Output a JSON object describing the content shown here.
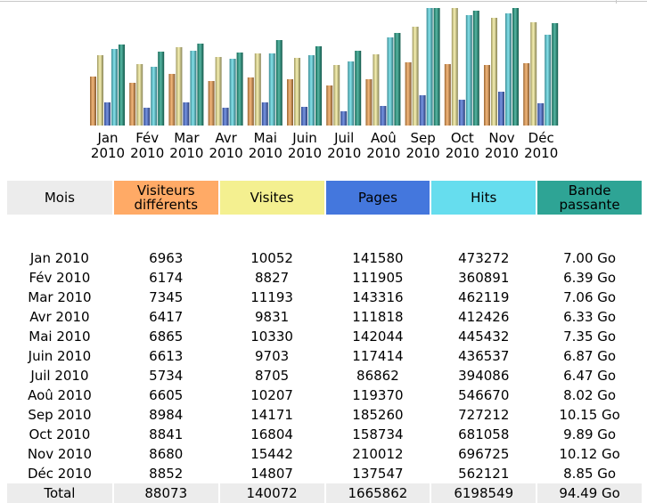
{
  "chart_data": {
    "type": "bar",
    "title": "",
    "categories": [
      "Jan 2010",
      "Fév 2010",
      "Mar 2010",
      "Avr 2010",
      "Mai 2010",
      "Juin 2010",
      "Juil 2010",
      "Aoû 2010",
      "Sep 2010",
      "Oct 2010",
      "Nov 2010",
      "Déc 2010"
    ],
    "category_lines": [
      [
        "Jan",
        "2010"
      ],
      [
        "Fév",
        "2010"
      ],
      [
        "Mar",
        "2010"
      ],
      [
        "Avr",
        "2010"
      ],
      [
        "Mai",
        "2010"
      ],
      [
        "Juin",
        "2010"
      ],
      [
        "Juil",
        "2010"
      ],
      [
        "Aoû",
        "2010"
      ],
      [
        "Sep",
        "2010"
      ],
      [
        "Oct",
        "2010"
      ],
      [
        "Nov",
        "2010"
      ],
      [
        "Déc",
        "2010"
      ]
    ],
    "series": [
      {
        "name": "Visiteurs différents",
        "key": "uniq",
        "color": "#f0a050",
        "values": [
          6963,
          6174,
          7345,
          6417,
          6865,
          6613,
          5734,
          6605,
          8984,
          8841,
          8680,
          8852
        ]
      },
      {
        "name": "Visites",
        "key": "visits",
        "color": "#f4ec98",
        "values": [
          10052,
          8827,
          11193,
          9831,
          10330,
          9703,
          8705,
          10207,
          14171,
          16804,
          15442,
          14807
        ]
      },
      {
        "name": "Pages",
        "key": "pages",
        "color": "#4a70d8",
        "values": [
          141580,
          111905,
          143316,
          111818,
          142044,
          117414,
          86862,
          119370,
          185260,
          158734,
          210012,
          137547
        ]
      },
      {
        "name": "Hits",
        "key": "hits",
        "color": "#5cd8e4",
        "values": [
          473272,
          360891,
          462119,
          412426,
          445432,
          436537,
          394086,
          546670,
          727212,
          681058,
          696725,
          562121
        ]
      },
      {
        "name": "Bande passante",
        "key": "bw",
        "color": "#1f9e84",
        "values": [
          7.0,
          6.39,
          7.06,
          6.33,
          7.35,
          6.87,
          6.47,
          8.02,
          10.15,
          9.89,
          10.12,
          8.85
        ]
      }
    ]
  },
  "table": {
    "headers": {
      "mois": "Mois",
      "visiteurs_l1": "Visiteurs",
      "visiteurs_l2": "différents",
      "visites": "Visites",
      "pages": "Pages",
      "hits": "Hits",
      "bande_l1": "Bande",
      "bande_l2": "passante"
    },
    "rows": [
      {
        "mois": "Jan 2010",
        "visiteurs": "6963",
        "visites": "10052",
        "pages": "141580",
        "hits": "473272",
        "bande": "7.00 Go"
      },
      {
        "mois": "Fév 2010",
        "visiteurs": "6174",
        "visites": "8827",
        "pages": "111905",
        "hits": "360891",
        "bande": "6.39 Go"
      },
      {
        "mois": "Mar 2010",
        "visiteurs": "7345",
        "visites": "11193",
        "pages": "143316",
        "hits": "462119",
        "bande": "7.06 Go"
      },
      {
        "mois": "Avr 2010",
        "visiteurs": "6417",
        "visites": "9831",
        "pages": "111818",
        "hits": "412426",
        "bande": "6.33 Go"
      },
      {
        "mois": "Mai 2010",
        "visiteurs": "6865",
        "visites": "10330",
        "pages": "142044",
        "hits": "445432",
        "bande": "7.35 Go"
      },
      {
        "mois": "Juin 2010",
        "visiteurs": "6613",
        "visites": "9703",
        "pages": "117414",
        "hits": "436537",
        "bande": "6.87 Go"
      },
      {
        "mois": "Juil 2010",
        "visiteurs": "5734",
        "visites": "8705",
        "pages": "86862",
        "hits": "394086",
        "bande": "6.47 Go"
      },
      {
        "mois": "Aoû 2010",
        "visiteurs": "6605",
        "visites": "10207",
        "pages": "119370",
        "hits": "546670",
        "bande": "8.02 Go"
      },
      {
        "mois": "Sep 2010",
        "visiteurs": "8984",
        "visites": "14171",
        "pages": "185260",
        "hits": "727212",
        "bande": "10.15 Go"
      },
      {
        "mois": "Oct 2010",
        "visiteurs": "8841",
        "visites": "16804",
        "pages": "158734",
        "hits": "681058",
        "bande": "9.89 Go"
      },
      {
        "mois": "Nov 2010",
        "visiteurs": "8680",
        "visites": "15442",
        "pages": "210012",
        "hits": "696725",
        "bande": "10.12 Go"
      },
      {
        "mois": "Déc 2010",
        "visiteurs": "8852",
        "visites": "14807",
        "pages": "137547",
        "hits": "562121",
        "bande": "8.85 Go"
      }
    ],
    "total": {
      "label": "Total",
      "visiteurs": "88073",
      "visites": "140072",
      "pages": "1665862",
      "hits": "6198549",
      "bande": "94.49 Go"
    }
  }
}
